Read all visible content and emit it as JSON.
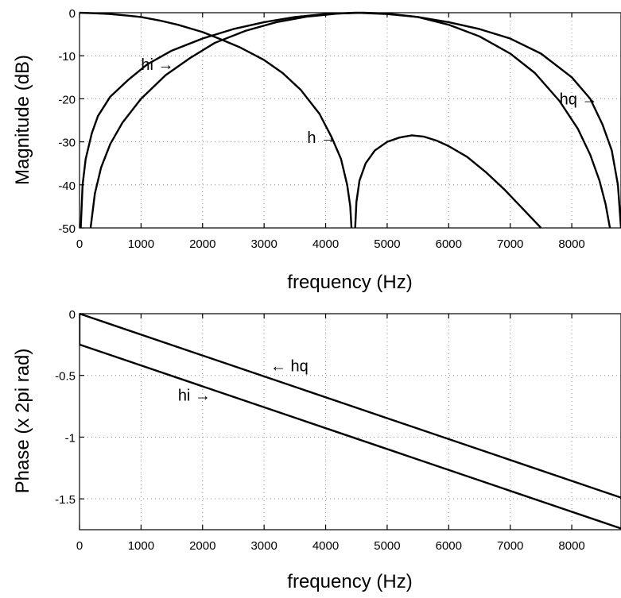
{
  "chart_data": [
    {
      "type": "line",
      "xlabel": "frequency (Hz)",
      "ylabel": "Magnitude (dB)",
      "xlim": [
        0,
        8800
      ],
      "ylim": [
        -50,
        0
      ],
      "xticks": [
        "0",
        "1000",
        "2000",
        "3000",
        "4000",
        "5000",
        "6000",
        "7000",
        "8000"
      ],
      "yticks": [
        "0",
        "-10",
        "-20",
        "-30",
        "-40",
        "-50"
      ],
      "xtick_values": [
        0,
        1000,
        2000,
        3000,
        4000,
        5000,
        6000,
        7000,
        8000
      ],
      "ytick_values": [
        0,
        -10,
        -20,
        -30,
        -40,
        -50
      ],
      "grid": true,
      "series": [
        {
          "name": "h",
          "x": [
            0,
            200,
            500,
            800,
            1000,
            1300,
            1600,
            2000,
            2300,
            2600,
            3000,
            3300,
            3600,
            3900,
            4100,
            4250,
            4350,
            4400,
            4420
          ],
          "y": [
            0,
            -0.1,
            -0.3,
            -0.7,
            -1.0,
            -1.8,
            -2.8,
            -4.5,
            -6.2,
            -8.0,
            -11.0,
            -14.0,
            -18.0,
            -23.5,
            -29.0,
            -34.0,
            -40.0,
            -45.0,
            -50
          ],
          "x2": [
            4480,
            4500,
            4550,
            4650,
            4800,
            5000,
            5200,
            5400,
            5600,
            5800,
            6000,
            6300,
            6600,
            6900,
            7200,
            7500
          ],
          "y2": [
            -50,
            -44.0,
            -39.0,
            -35.0,
            -32.0,
            -30.0,
            -29.0,
            -28.5,
            -28.8,
            -29.7,
            -31.0,
            -33.5,
            -37.0,
            -41.0,
            -45.5,
            -50
          ]
        },
        {
          "name": "hi",
          "x": [
            20,
            50,
            100,
            200,
            300,
            500,
            800,
            1100,
            1500,
            2000,
            2500,
            3000,
            3500,
            4000,
            4500,
            5000,
            5500,
            6000,
            6500,
            7000,
            7500,
            8000,
            8300,
            8500,
            8650,
            8750,
            8800
          ],
          "y": [
            -50,
            -40.0,
            -34.0,
            -28.0,
            -24.0,
            -19.5,
            -15.5,
            -12.0,
            -8.8,
            -6.0,
            -3.8,
            -2.2,
            -1.0,
            -0.3,
            0,
            -0.3,
            -1.0,
            -2.2,
            -3.8,
            -6.0,
            -9.5,
            -15.0,
            -20.0,
            -26.0,
            -32.0,
            -40.0,
            -50
          ]
        },
        {
          "name": "hq",
          "x": [
            180,
            250,
            350,
            500,
            700,
            1000,
            1400,
            1800,
            2200,
            2700,
            3200,
            3700,
            4200,
            4600,
            5000,
            5500,
            6000,
            6500,
            7000,
            7400,
            7800,
            8100,
            8300,
            8450,
            8550,
            8620
          ],
          "y": [
            -50,
            -42.0,
            -36.0,
            -30.5,
            -25.5,
            -20.0,
            -14.5,
            -10.5,
            -7.0,
            -4.2,
            -2.2,
            -0.9,
            -0.2,
            0,
            -0.2,
            -1.0,
            -2.8,
            -5.5,
            -9.5,
            -14.0,
            -20.5,
            -27.0,
            -33.0,
            -39.0,
            -44.5,
            -50
          ]
        }
      ],
      "annotations": [
        {
          "text": "hi →",
          "x": 1000,
          "y": -12.0
        },
        {
          "text": "h →",
          "x": 3700,
          "y": -29.0
        },
        {
          "text": "hq →",
          "x": 7800,
          "y": -20.0
        }
      ]
    },
    {
      "type": "line",
      "xlabel": "frequency (Hz)",
      "ylabel": "Phase (x 2pi rad)",
      "xlim": [
        0,
        8800
      ],
      "ylim": [
        -1.75,
        0
      ],
      "xticks": [
        "0",
        "1000",
        "2000",
        "3000",
        "4000",
        "5000",
        "6000",
        "7000",
        "8000"
      ],
      "yticks": [
        "0",
        "-0.5",
        "-1",
        "-1.5"
      ],
      "xtick_values": [
        0,
        1000,
        2000,
        3000,
        4000,
        5000,
        6000,
        7000,
        8000
      ],
      "ytick_values": [
        0,
        -0.5,
        -1,
        -1.5
      ],
      "grid": true,
      "series": [
        {
          "name": "hq",
          "x": [
            0,
            8800
          ],
          "y": [
            0,
            -1.49
          ]
        },
        {
          "name": "hi",
          "x": [
            0,
            0,
            8800
          ],
          "y": [
            0,
            -0.25,
            -1.74
          ]
        }
      ],
      "annotations": [
        {
          "text": "← hq",
          "x": 3100,
          "y": -0.42
        },
        {
          "text": "hi →",
          "x": 1600,
          "y": -0.66
        }
      ]
    }
  ]
}
